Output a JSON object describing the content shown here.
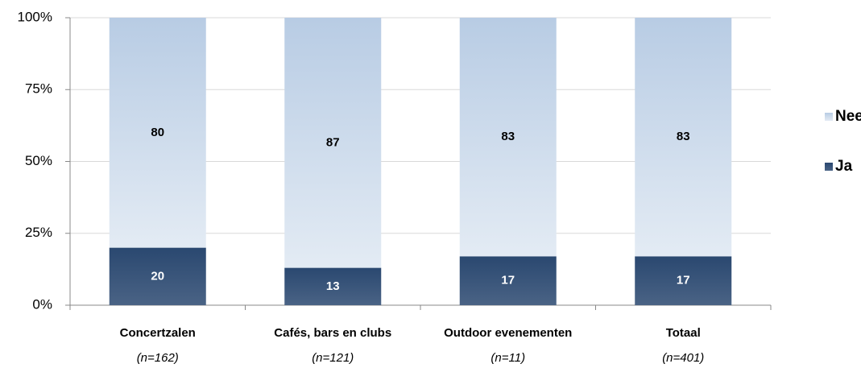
{
  "chart_data": {
    "type": "stacked_bar",
    "categories": [
      "Concertzalen",
      "Cafés, bars en clubs",
      "Outdoor evenementen",
      "Totaal"
    ],
    "category_subtitles": [
      "(n=162)",
      "(n=121)",
      "(n=11)",
      "(n=401)"
    ],
    "series": [
      {
        "name": "Ja",
        "color": "#2a4870",
        "values": [
          20,
          13,
          17,
          17
        ]
      },
      {
        "name": "Nee",
        "color": "#b8cce4",
        "values": [
          80,
          87,
          83,
          83
        ]
      }
    ],
    "ylim": [
      0,
      100
    ],
    "yticks": [
      {
        "value": 0,
        "label": "0%"
      },
      {
        "value": 25,
        "label": "25%"
      },
      {
        "value": 50,
        "label": "50%"
      },
      {
        "value": 75,
        "label": "75%"
      },
      {
        "value": 100,
        "label": "100%"
      }
    ],
    "grid": true,
    "legend": "right"
  }
}
